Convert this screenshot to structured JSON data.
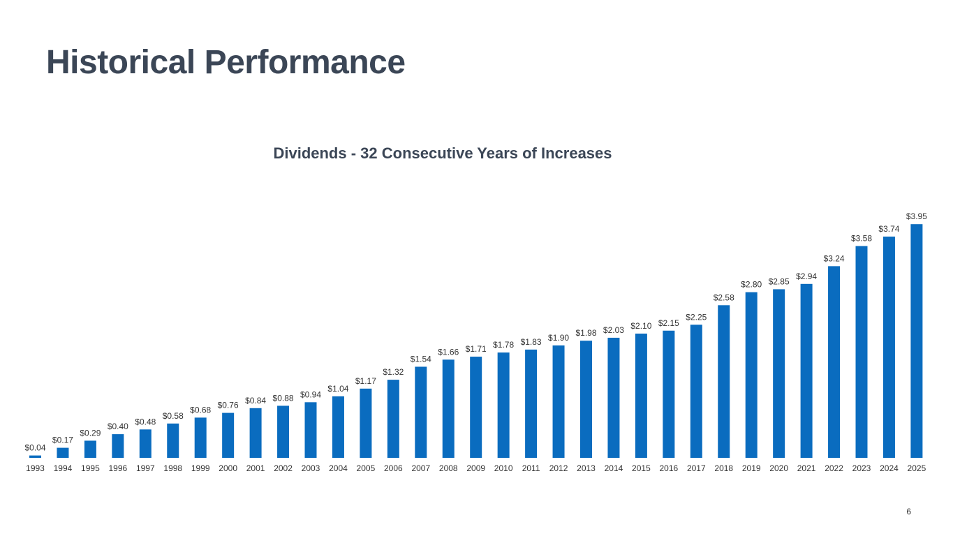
{
  "slide": {
    "title": "Historical Performance",
    "page_number": "6"
  },
  "colors": {
    "bar": "#0a6cbf",
    "title": "#3b4656",
    "label": "#333333"
  },
  "chart_data": {
    "type": "bar",
    "title": "Dividends - 32 Consecutive Years of Increases",
    "xlabel": "",
    "ylabel": "",
    "grid": false,
    "ylim": [
      0,
      4.2
    ],
    "categories": [
      "1993",
      "1994",
      "1995",
      "1996",
      "1997",
      "1998",
      "1999",
      "2000",
      "2001",
      "2002",
      "2003",
      "2004",
      "2005",
      "2006",
      "2007",
      "2008",
      "2009",
      "2010",
      "2011",
      "2012",
      "2013",
      "2014",
      "2015",
      "2016",
      "2017",
      "2018",
      "2019",
      "2020",
      "2021",
      "2022",
      "2023",
      "2024",
      "2025"
    ],
    "values": [
      0.04,
      0.17,
      0.29,
      0.4,
      0.48,
      0.58,
      0.68,
      0.76,
      0.84,
      0.88,
      0.94,
      1.04,
      1.17,
      1.32,
      1.54,
      1.66,
      1.71,
      1.78,
      1.83,
      1.9,
      1.98,
      2.03,
      2.1,
      2.15,
      2.25,
      2.58,
      2.8,
      2.85,
      2.94,
      3.24,
      3.58,
      3.74,
      3.95
    ],
    "labels": [
      "$0.04",
      "$0.17",
      "$0.29",
      "$0.40",
      "$0.48",
      "$0.58",
      "$0.68",
      "$0.76",
      "$0.84",
      "$0.88",
      "$0.94",
      "$1.04",
      "$1.17",
      "$1.32",
      "$1.54",
      "$1.66",
      "$1.71",
      "$1.78",
      "$1.83",
      "$1.90",
      "$1.98",
      "$2.03",
      "$2.10",
      "$2.15",
      "$2.25",
      "$2.58",
      "$2.80",
      "$2.85",
      "$2.94",
      "$3.24",
      "$3.58",
      "$3.74",
      "$3.95"
    ]
  }
}
